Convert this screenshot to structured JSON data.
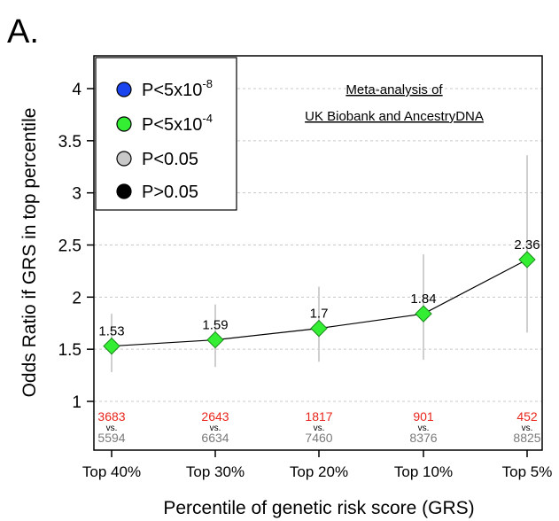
{
  "panel_label": "A.",
  "chart_data": {
    "type": "scatter",
    "categories": [
      "Top 40%",
      "Top 30%",
      "Top 20%",
      "Top 10%",
      "Top 5%"
    ],
    "series": [
      {
        "values": [
          1.53,
          1.59,
          1.7,
          1.84,
          2.36
        ],
        "point_labels": [
          "1.53",
          "1.59",
          "1.7",
          "1.84",
          "2.36"
        ],
        "ci_lower": [
          1.28,
          1.33,
          1.38,
          1.4,
          1.66
        ],
        "ci_upper": [
          1.84,
          1.93,
          2.1,
          2.41,
          3.36
        ],
        "color": "#33ee33",
        "marker": "diamond",
        "line": true
      }
    ],
    "ylabel": "Odds Ratio if GRS in top percentile",
    "xlabel": "Percentile of genetic risk score (GRS)",
    "ylim": [
      1,
      4.4
    ],
    "yticks": [
      1,
      1.5,
      2,
      2.5,
      3,
      3.5,
      4
    ],
    "ytick_labels": [
      "1",
      "1.5",
      "2",
      "2.5",
      "3",
      "3.5",
      "4"
    ],
    "grid": "horizontal dashed",
    "annotation": {
      "line1": "Meta-analysis of",
      "line2": "UK Biobank and AncestryDNA"
    },
    "legend": {
      "placement": "top-left",
      "entries": [
        {
          "base": "P<5x10",
          "sup": "-8",
          "color": "#1a44ee"
        },
        {
          "base": "P<5x10",
          "sup": "-4",
          "color": "#33ee33"
        },
        {
          "base": "P<0.05",
          "sup": "",
          "color": "#c8c8c8"
        },
        {
          "base": "P>0.05",
          "sup": "",
          "color": "#000000"
        }
      ]
    },
    "counts": {
      "cases": [
        "3683",
        "2643",
        "1817",
        "901",
        "452"
      ],
      "vs_label": "vs.",
      "controls": [
        "5594",
        "6634",
        "7460",
        "8376",
        "8825"
      ],
      "cases_color": "#e8261c",
      "controls_color": "#7a7a7a"
    }
  }
}
